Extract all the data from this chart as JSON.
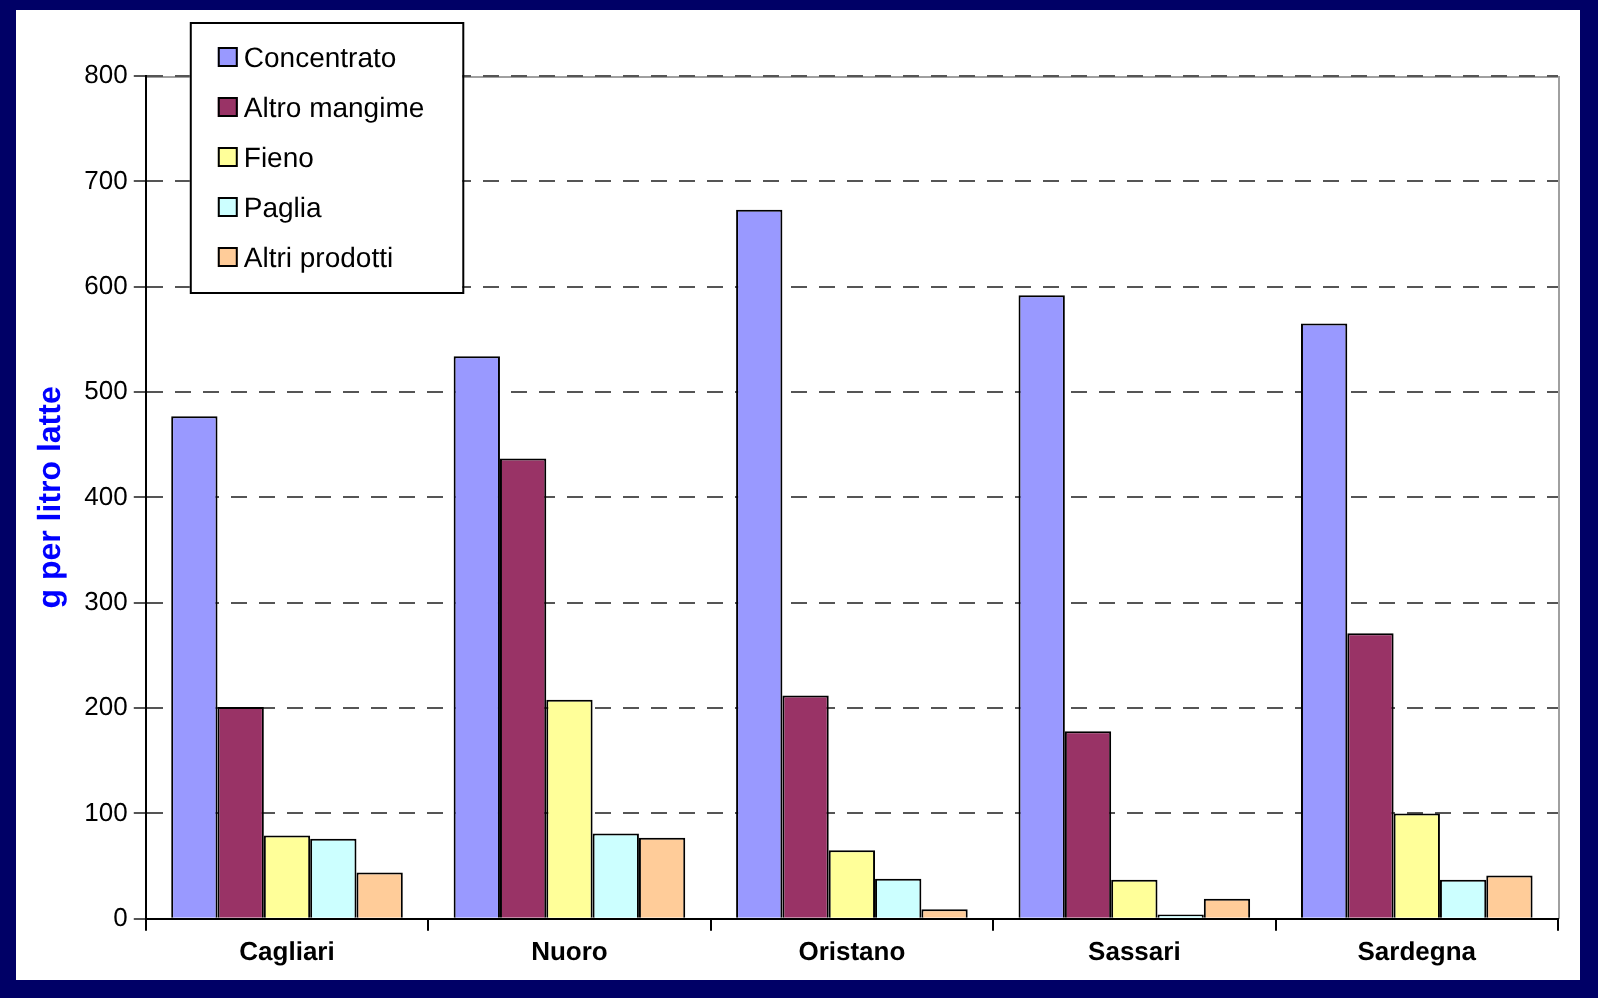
{
  "chart_data": {
    "type": "bar",
    "ylabel": "g per litro latte",
    "categories": [
      "Cagliari",
      "Nuoro",
      "Oristano",
      "Sassari",
      "Sardegna"
    ],
    "series": [
      {
        "name": "Concentrato",
        "color": "#9999ff",
        "values": [
          477,
          534,
          673,
          592,
          565
        ]
      },
      {
        "name": "Altro mangime",
        "color": "#993366",
        "values": [
          201,
          437,
          212,
          178,
          271
        ]
      },
      {
        "name": "Fieno",
        "color": "#ffff99",
        "values": [
          79,
          208,
          65,
          37,
          100
        ]
      },
      {
        "name": "Paglia",
        "color": "#ccffff",
        "values": [
          76,
          81,
          38,
          4,
          37
        ]
      },
      {
        "name": "Altri prodotti",
        "color": "#ffcc99",
        "values": [
          44,
          77,
          9,
          19,
          41
        ]
      }
    ],
    "ylim": [
      0,
      800
    ],
    "yticks": [
      0,
      100,
      200,
      300,
      400,
      500,
      600,
      700,
      800
    ],
    "grid": "y",
    "legend": "top left"
  }
}
